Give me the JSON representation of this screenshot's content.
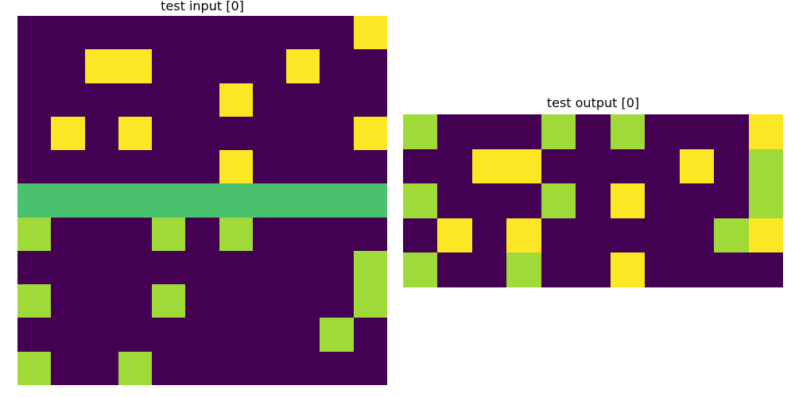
{
  "titles": {
    "input": "test input [0]",
    "output": "test output [0]"
  },
  "palette": {
    "0": "#440154",
    "1": "#fde725",
    "2": "#4ac16d",
    "3": "#a0da39"
  },
  "input_grid": [
    [
      0,
      0,
      0,
      0,
      0,
      0,
      0,
      0,
      0,
      0,
      1
    ],
    [
      0,
      0,
      1,
      1,
      0,
      0,
      0,
      0,
      1,
      0,
      0
    ],
    [
      0,
      0,
      0,
      0,
      0,
      0,
      1,
      0,
      0,
      0,
      0
    ],
    [
      0,
      1,
      0,
      1,
      0,
      0,
      0,
      0,
      0,
      0,
      1
    ],
    [
      0,
      0,
      0,
      0,
      0,
      0,
      1,
      0,
      0,
      0,
      0
    ],
    [
      2,
      2,
      2,
      2,
      2,
      2,
      2,
      2,
      2,
      2,
      2
    ],
    [
      3,
      0,
      0,
      0,
      3,
      0,
      3,
      0,
      0,
      0,
      0
    ],
    [
      0,
      0,
      0,
      0,
      0,
      0,
      0,
      0,
      0,
      0,
      3
    ],
    [
      3,
      0,
      0,
      0,
      3,
      0,
      0,
      0,
      0,
      0,
      3
    ],
    [
      0,
      0,
      0,
      0,
      0,
      0,
      0,
      0,
      0,
      3,
      0
    ],
    [
      3,
      0,
      0,
      3,
      0,
      0,
      0,
      0,
      0,
      0,
      0
    ]
  ],
  "output_grid": [
    [
      3,
      0,
      0,
      0,
      3,
      0,
      3,
      0,
      0,
      0,
      1
    ],
    [
      0,
      0,
      1,
      1,
      0,
      0,
      0,
      0,
      1,
      0,
      3
    ],
    [
      3,
      0,
      0,
      0,
      3,
      0,
      1,
      0,
      0,
      0,
      3
    ],
    [
      0,
      1,
      0,
      1,
      0,
      0,
      0,
      0,
      0,
      3,
      1
    ],
    [
      3,
      0,
      0,
      3,
      0,
      0,
      1,
      0,
      0,
      0,
      0
    ]
  ]
}
